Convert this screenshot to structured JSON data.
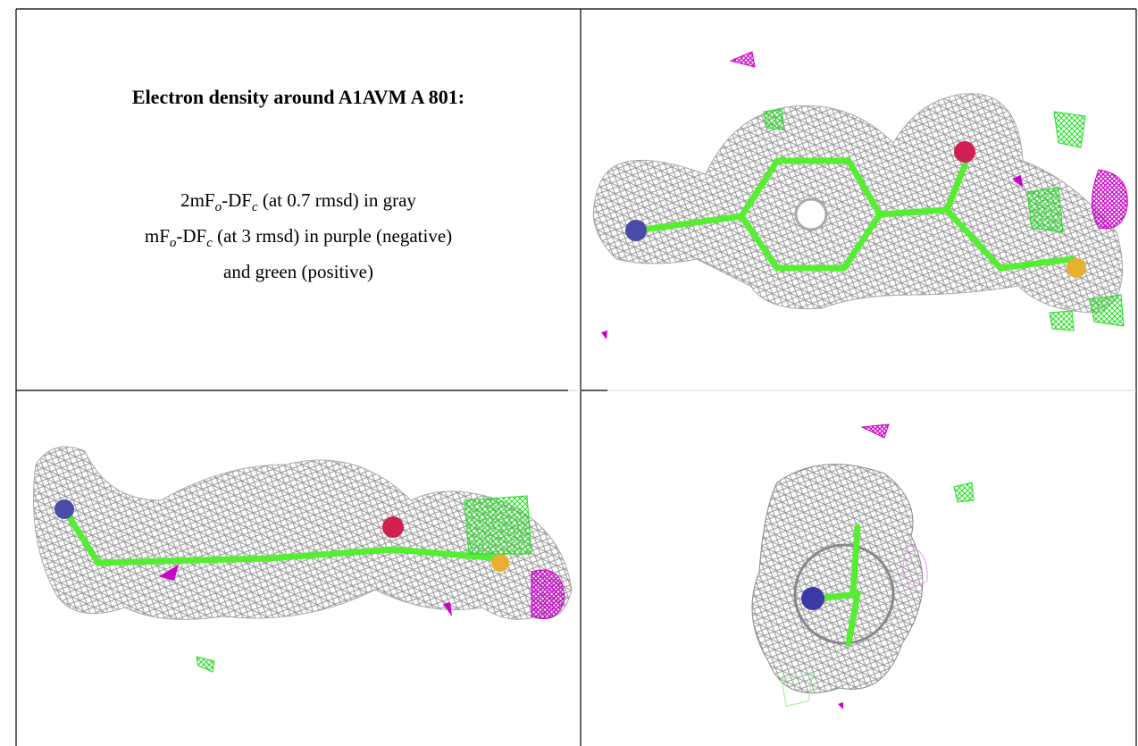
{
  "caption": {
    "title": "Electron density around A1AVM A 801:",
    "lines": [
      [
        "2mF",
        "o",
        "-DF",
        "c",
        " (at 0.7 rmsd) in gray"
      ],
      [
        "mF",
        "o",
        "-DF",
        "c",
        " (at 3 rmsd) in purple (negative)"
      ],
      [
        "and green (positive)"
      ]
    ]
  }
}
